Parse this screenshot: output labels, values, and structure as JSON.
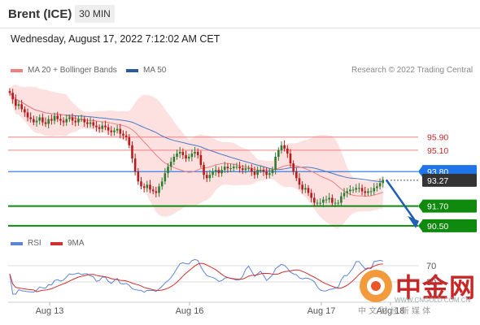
{
  "header": {
    "instrument": "Brent (ICE)",
    "timeframe": "30 MIN",
    "datetime": "Wednesday, August 17, 2022 7:12:02 AM CET"
  },
  "legend": {
    "ma20_bb": "MA 20 + Bollinger Bands",
    "ma50": "MA 50",
    "copyright": "Research © 2022 Trading Central",
    "rsi": "RSI",
    "rsi_ma": "9MA"
  },
  "colors": {
    "ma20": "#f08080",
    "ma50": "#4a78c2",
    "bb_fill": "#fde0e0",
    "resistance": "#f08080",
    "current_price": "#1e74e8",
    "support": "#0f8a0f",
    "candle_up": "#2e7d32",
    "candle_down": "#b71c1c",
    "rsi": "#5b86d6",
    "rsi_ma": "#d32f2f"
  },
  "chart_data": {
    "type": "candlestick",
    "x_ticks": [
      "Aug 13",
      "Aug 16",
      "Aug 17",
      "Aug 18"
    ],
    "levels": {
      "resistance": [
        95.9,
        95.1
      ],
      "current": [
        93.8,
        93.27
      ],
      "support": [
        91.7,
        90.5
      ]
    },
    "level_labels": {
      "r1": "95.90",
      "r2": "95.10",
      "current": "93.80",
      "last": "93.27",
      "s1": "91.70",
      "s2": "90.50"
    },
    "ylim": [
      89.9,
      99.3
    ],
    "closes": [
      98.6,
      98.2,
      97.8,
      97.9,
      97.6,
      97.4,
      97.1,
      97.0,
      96.8,
      96.9,
      97.1,
      96.8,
      96.7,
      97.0,
      96.9,
      97.2,
      97.0,
      96.9,
      96.8,
      97.0,
      97.1,
      96.9,
      96.8,
      97.0,
      97.0,
      96.8,
      96.7,
      96.8,
      96.6,
      96.5,
      96.4,
      96.6,
      96.5,
      96.3,
      96.2,
      96.3,
      96.4,
      96.1,
      96.0,
      95.9,
      95.4,
      94.6,
      93.8,
      93.2,
      92.9,
      92.8,
      93.0,
      92.7,
      92.6,
      92.5,
      92.9,
      93.2,
      93.7,
      94.1,
      94.4,
      94.7,
      94.9,
      95.0,
      94.8,
      94.6,
      94.7,
      94.9,
      95.0,
      94.8,
      94.2,
      93.6,
      93.4,
      93.6,
      93.8,
      93.9,
      93.7,
      93.9,
      94.1,
      94.0,
      94.0,
      94.1,
      94.1,
      94.0,
      93.9,
      94.0,
      94.0,
      93.8,
      93.6,
      93.9,
      93.9,
      93.8,
      93.6,
      93.7,
      93.9,
      94.7,
      95.1,
      95.4,
      95.2,
      94.9,
      94.3,
      93.8,
      93.4,
      93.0,
      92.7,
      92.8,
      92.5,
      92.2,
      91.9,
      91.9,
      91.9,
      92.1,
      92.1,
      92.2,
      91.9,
      91.9,
      91.9,
      92.3,
      92.5,
      92.6,
      92.7,
      92.7,
      92.8,
      92.8,
      92.6,
      92.5,
      92.6,
      92.6,
      92.8,
      92.9,
      93.1,
      93.3
    ],
    "forecast": {
      "from": 93.3,
      "to": 90.6
    },
    "rsi": {
      "levels": [
        "70",
        "30"
      ],
      "ylim": [
        0,
        100
      ]
    }
  },
  "branding": {
    "cn_name": "中金网",
    "cn_tagline": "中 文 财 经 新 媒 体",
    "site": "WWW.CNGOLD.COM.CN"
  }
}
